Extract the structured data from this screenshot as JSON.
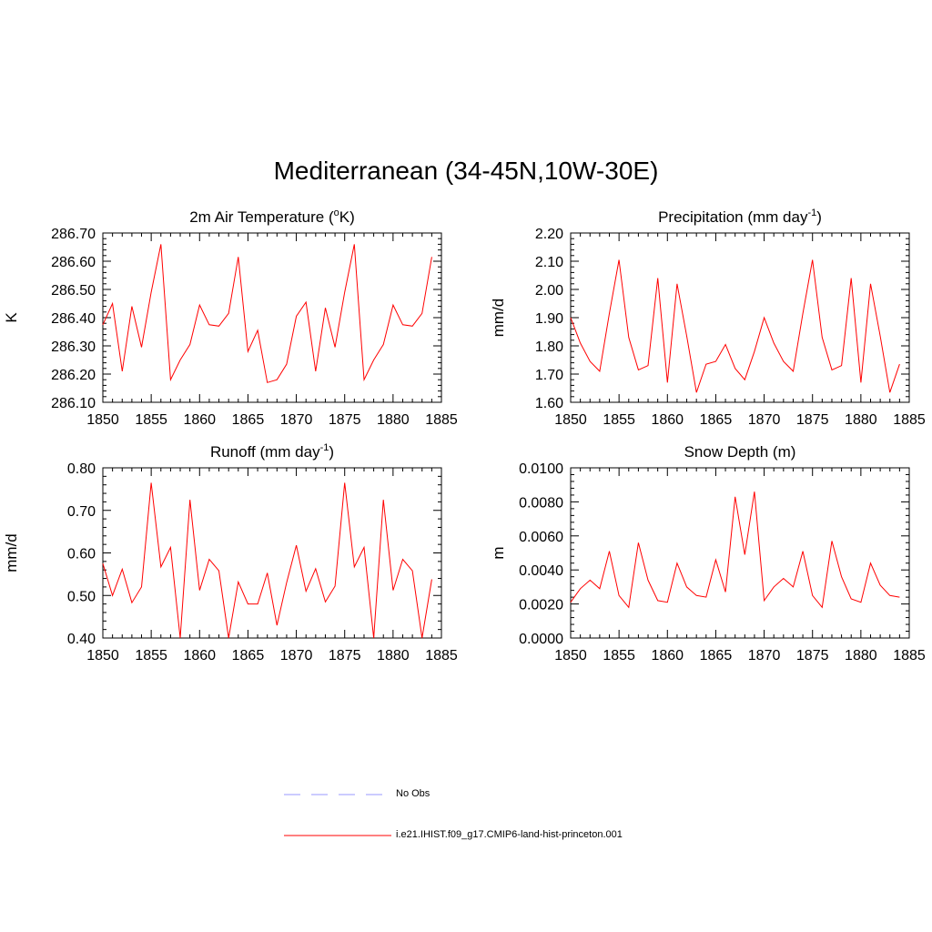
{
  "title": "Mediterranean (34-45N,10W-30E)",
  "colors": {
    "model": "#ff0000",
    "obs": "#9999ff",
    "axis": "#000000"
  },
  "legend": {
    "obs_label": "No Obs",
    "model_label": "i.e21.IHIST.f09_g17.CMIP6-land-hist-princeton.001"
  },
  "chart_data": [
    {
      "type": "line",
      "title": "2m Air Temperature (",
      "title_sup": "o",
      "title_after": "K)",
      "ylabel": "K",
      "xlim": [
        1850,
        1885
      ],
      "ylim": [
        286.1,
        286.7
      ],
      "yticks": [
        "286.10",
        "286.20",
        "286.30",
        "286.40",
        "286.50",
        "286.60",
        "286.70"
      ],
      "xticks": [
        "1850",
        "1855",
        "1860",
        "1865",
        "1870",
        "1875",
        "1880",
        "1885"
      ],
      "x": [
        1850,
        1851,
        1852,
        1853,
        1854,
        1855,
        1856,
        1857,
        1858,
        1859,
        1860,
        1861,
        1862,
        1863,
        1864,
        1865,
        1866,
        1867,
        1868,
        1869,
        1870,
        1871,
        1872,
        1873,
        1874,
        1875,
        1876,
        1877,
        1878,
        1879,
        1880,
        1881,
        1882,
        1883,
        1884
      ],
      "series": [
        {
          "values": [
            286.375,
            286.45,
            286.21,
            286.44,
            286.295,
            286.49,
            286.66,
            286.18,
            286.25,
            286.305,
            286.445,
            286.375,
            286.37,
            286.415,
            286.615,
            286.28,
            286.355,
            286.17,
            286.18,
            286.235,
            286.405,
            286.455,
            286.21,
            286.435,
            286.295,
            286.49,
            286.66,
            286.18,
            286.25,
            286.305,
            286.445,
            286.375,
            286.37,
            286.415,
            286.615
          ]
        }
      ]
    },
    {
      "type": "line",
      "title": "Precipitation (mm day",
      "title_sup": "-1",
      "title_after": ")",
      "ylabel": "mm/d",
      "xlim": [
        1850,
        1885
      ],
      "ylim": [
        1.6,
        2.2
      ],
      "yticks": [
        "1.60",
        "1.70",
        "1.80",
        "1.90",
        "2.00",
        "2.10",
        "2.20"
      ],
      "xticks": [
        "1850",
        "1855",
        "1860",
        "1865",
        "1870",
        "1875",
        "1880",
        "1885"
      ],
      "x": [
        1850,
        1851,
        1852,
        1853,
        1854,
        1855,
        1856,
        1857,
        1858,
        1859,
        1860,
        1861,
        1862,
        1863,
        1864,
        1865,
        1866,
        1867,
        1868,
        1869,
        1870,
        1871,
        1872,
        1873,
        1874,
        1875,
        1876,
        1877,
        1878,
        1879,
        1880,
        1881,
        1882,
        1883,
        1884
      ],
      "series": [
        {
          "values": [
            1.9,
            1.81,
            1.745,
            1.71,
            1.915,
            2.105,
            1.83,
            1.715,
            1.73,
            2.04,
            1.67,
            2.02,
            1.835,
            1.635,
            1.735,
            1.745,
            1.805,
            1.72,
            1.68,
            1.78,
            1.9,
            1.81,
            1.745,
            1.71,
            1.915,
            2.105,
            1.83,
            1.715,
            1.73,
            2.04,
            1.67,
            2.02,
            1.835,
            1.635,
            1.735
          ]
        }
      ]
    },
    {
      "type": "line",
      "title": "Runoff (mm day",
      "title_sup": "-1",
      "title_after": ")",
      "ylabel": "mm/d",
      "xlim": [
        1850,
        1885
      ],
      "ylim": [
        0.4,
        0.8
      ],
      "yticks": [
        "0.40",
        "0.50",
        "0.60",
        "0.70",
        "0.80"
      ],
      "xticks": [
        "1850",
        "1855",
        "1860",
        "1865",
        "1870",
        "1875",
        "1880",
        "1885"
      ],
      "x": [
        1850,
        1851,
        1852,
        1853,
        1854,
        1855,
        1856,
        1857,
        1858,
        1859,
        1860,
        1861,
        1862,
        1863,
        1864,
        1865,
        1866,
        1867,
        1868,
        1869,
        1870,
        1871,
        1872,
        1873,
        1874,
        1875,
        1876,
        1877,
        1878,
        1879,
        1880,
        1881,
        1882,
        1883,
        1884
      ],
      "series": [
        {
          "values": [
            0.575,
            0.5,
            0.562,
            0.483,
            0.52,
            0.765,
            0.567,
            0.613,
            0.4,
            0.725,
            0.512,
            0.585,
            0.558,
            0.4,
            0.532,
            0.48,
            0.48,
            0.553,
            0.43,
            0.53,
            0.618,
            0.51,
            0.563,
            0.485,
            0.522,
            0.765,
            0.567,
            0.613,
            0.4,
            0.725,
            0.512,
            0.585,
            0.558,
            0.4,
            0.538
          ]
        }
      ]
    },
    {
      "type": "line",
      "title": "Snow Depth (m)",
      "title_sup": "",
      "title_after": "",
      "ylabel": "m",
      "xlim": [
        1850,
        1885
      ],
      "ylim": [
        0.0,
        0.01
      ],
      "yticks": [
        "0.0000",
        "0.0020",
        "0.0040",
        "0.0060",
        "0.0080",
        "0.0100"
      ],
      "xticks": [
        "1850",
        "1855",
        "1860",
        "1865",
        "1870",
        "1875",
        "1880",
        "1885"
      ],
      "x": [
        1850,
        1851,
        1852,
        1853,
        1854,
        1855,
        1856,
        1857,
        1858,
        1859,
        1860,
        1861,
        1862,
        1863,
        1864,
        1865,
        1866,
        1867,
        1868,
        1869,
        1870,
        1871,
        1872,
        1873,
        1874,
        1875,
        1876,
        1877,
        1878,
        1879,
        1880,
        1881,
        1882,
        1883,
        1884
      ],
      "series": [
        {
          "values": [
            0.0021,
            0.0029,
            0.0034,
            0.0029,
            0.0051,
            0.0025,
            0.0018,
            0.0056,
            0.0034,
            0.0022,
            0.0021,
            0.0044,
            0.003,
            0.0025,
            0.0024,
            0.0046,
            0.0027,
            0.0083,
            0.0049,
            0.0086,
            0.0022,
            0.003,
            0.0035,
            0.003,
            0.0051,
            0.0025,
            0.0018,
            0.0057,
            0.0036,
            0.0023,
            0.0021,
            0.0044,
            0.0031,
            0.0025,
            0.0024
          ]
        }
      ]
    }
  ]
}
